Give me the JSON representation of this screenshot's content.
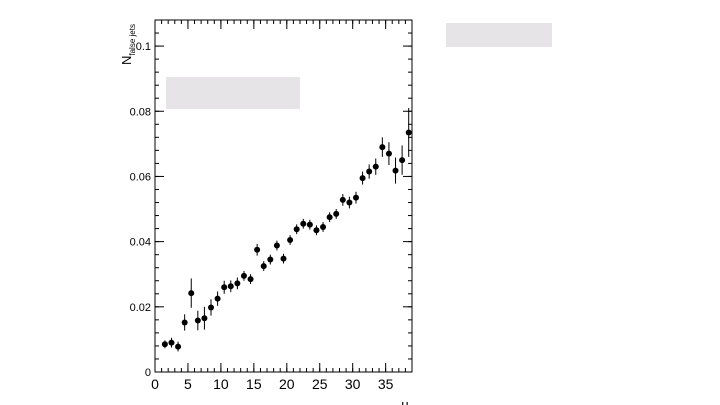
{
  "chart_data": {
    "type": "scatter",
    "title": "",
    "xlabel": "μ",
    "ylabel_main": "N",
    "ylabel_sub": "false jets",
    "xlim": [
      0,
      39
    ],
    "ylim": [
      0,
      0.108
    ],
    "x_major_ticks": [
      0,
      5,
      10,
      15,
      20,
      25,
      30,
      35
    ],
    "x_tick_labels": [
      "0",
      "5",
      "10",
      "15",
      "20",
      "25",
      "30",
      "35"
    ],
    "y_major_ticks": [
      0,
      0.02,
      0.04,
      0.06,
      0.08,
      0.1
    ],
    "y_tick_labels": [
      "0",
      "0.02",
      "0.04",
      "0.06",
      "0.08",
      "0.1"
    ],
    "grid": false,
    "marker_color": "#000000",
    "points": [
      {
        "x": 1.5,
        "y": 0.0085,
        "err": 0.0012
      },
      {
        "x": 2.5,
        "y": 0.009,
        "err": 0.0015
      },
      {
        "x": 3.5,
        "y": 0.0078,
        "err": 0.0015
      },
      {
        "x": 4.5,
        "y": 0.0152,
        "err": 0.0025
      },
      {
        "x": 5.5,
        "y": 0.0242,
        "err": 0.0045
      },
      {
        "x": 6.5,
        "y": 0.0158,
        "err": 0.003
      },
      {
        "x": 7.5,
        "y": 0.0165,
        "err": 0.0035
      },
      {
        "x": 8.5,
        "y": 0.0198,
        "err": 0.0025
      },
      {
        "x": 9.5,
        "y": 0.0225,
        "err": 0.0022
      },
      {
        "x": 10.5,
        "y": 0.026,
        "err": 0.002
      },
      {
        "x": 11.5,
        "y": 0.0263,
        "err": 0.0018
      },
      {
        "x": 12.5,
        "y": 0.0272,
        "err": 0.0018
      },
      {
        "x": 13.5,
        "y": 0.0295,
        "err": 0.0015
      },
      {
        "x": 14.5,
        "y": 0.0285,
        "err": 0.0015
      },
      {
        "x": 15.5,
        "y": 0.0375,
        "err": 0.0018
      },
      {
        "x": 16.5,
        "y": 0.0325,
        "err": 0.0015
      },
      {
        "x": 17.5,
        "y": 0.0345,
        "err": 0.0015
      },
      {
        "x": 18.5,
        "y": 0.0388,
        "err": 0.0015
      },
      {
        "x": 19.5,
        "y": 0.0348,
        "err": 0.0015
      },
      {
        "x": 20.5,
        "y": 0.0405,
        "err": 0.0015
      },
      {
        "x": 21.5,
        "y": 0.0438,
        "err": 0.0015
      },
      {
        "x": 22.5,
        "y": 0.0455,
        "err": 0.0015
      },
      {
        "x": 23.5,
        "y": 0.0452,
        "err": 0.0015
      },
      {
        "x": 24.5,
        "y": 0.0435,
        "err": 0.0015
      },
      {
        "x": 25.5,
        "y": 0.0445,
        "err": 0.0015
      },
      {
        "x": 26.5,
        "y": 0.0475,
        "err": 0.0015
      },
      {
        "x": 27.5,
        "y": 0.0485,
        "err": 0.0015
      },
      {
        "x": 28.5,
        "y": 0.0528,
        "err": 0.0018
      },
      {
        "x": 29.5,
        "y": 0.052,
        "err": 0.0018
      },
      {
        "x": 30.5,
        "y": 0.0535,
        "err": 0.0018
      },
      {
        "x": 31.5,
        "y": 0.0595,
        "err": 0.002
      },
      {
        "x": 32.5,
        "y": 0.0615,
        "err": 0.0022
      },
      {
        "x": 33.5,
        "y": 0.063,
        "err": 0.0025
      },
      {
        "x": 34.5,
        "y": 0.069,
        "err": 0.003
      },
      {
        "x": 35.5,
        "y": 0.067,
        "err": 0.0035
      },
      {
        "x": 36.5,
        "y": 0.0618,
        "err": 0.004
      },
      {
        "x": 37.5,
        "y": 0.065,
        "err": 0.0045
      },
      {
        "x": 38.5,
        "y": 0.0735,
        "err": 0.0075
      }
    ]
  }
}
